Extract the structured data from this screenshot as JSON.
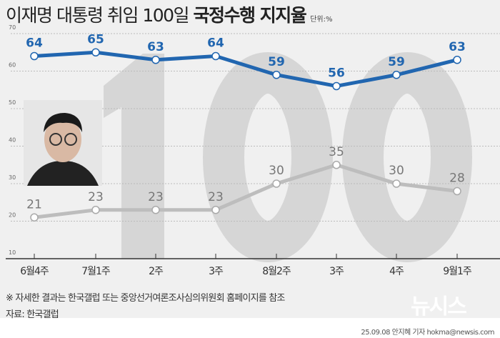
{
  "title": {
    "regular": "이재명 대통령 취임 100일 ",
    "bold": "국정수행 지지율",
    "unit": "단위:%"
  },
  "background_number": "100",
  "colors": {
    "positive": "#2166b0",
    "negative": "#bdbdbd",
    "background": "#f0f0f0"
  },
  "chart_data": {
    "type": "line",
    "categories": [
      "6월4주",
      "7월1주",
      "2주",
      "3주",
      "8월2주",
      "3주",
      "4주",
      "9월1주"
    ],
    "ylim": [
      10,
      70
    ],
    "yticks": [
      "10",
      "20",
      "30",
      "40",
      "50",
      "60",
      "70"
    ],
    "grid": true,
    "series": [
      {
        "values": [
          64,
          65,
          63,
          64,
          59,
          56,
          59,
          63
        ],
        "color": "#2166b0"
      },
      {
        "values": [
          21,
          23,
          23,
          23,
          30,
          35,
          30,
          28
        ],
        "color": "#bdbdbd"
      }
    ]
  },
  "footer": {
    "note": "※ 자세한 결과는 한국갤럽 또는 중앙선거여론조사심의위원회 홈페이지를 참조",
    "source": "자료: 한국갤럽",
    "logo": "뉴시스",
    "credit": "25.09.08 안지혜 기자 hokma@newsis.com"
  }
}
